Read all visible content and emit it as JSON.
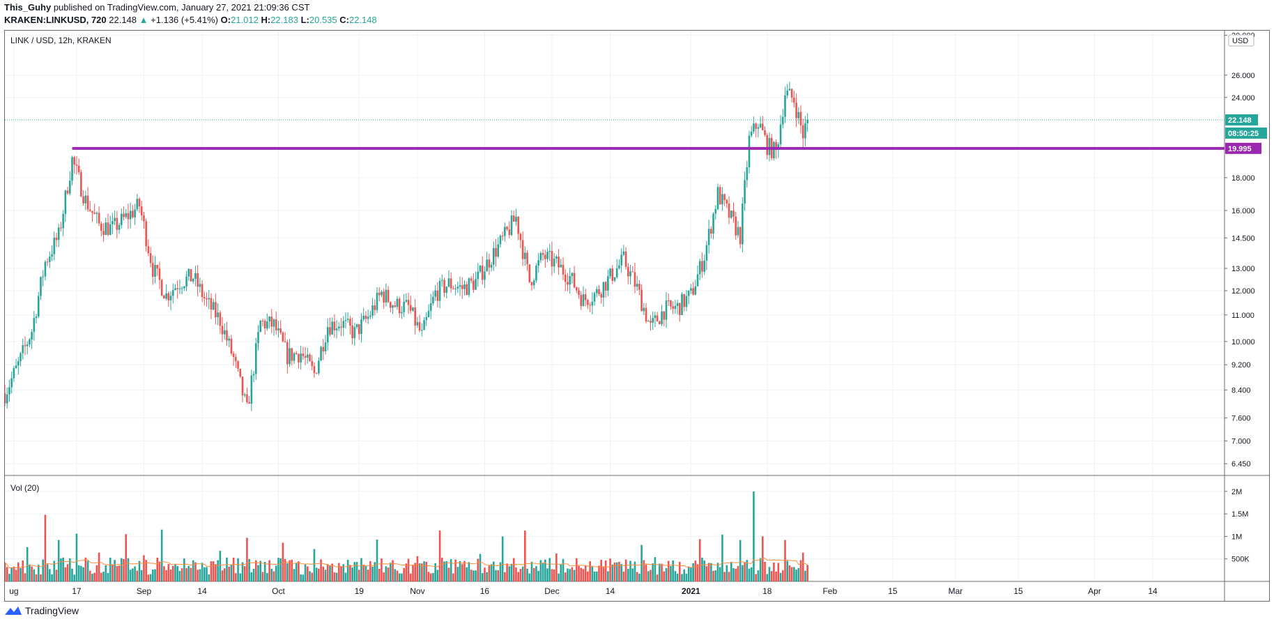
{
  "header": {
    "author": "This_Guhy",
    "published_text": "published on TradingView.com, January 27, 2021 21:09:36 CST",
    "symbol": "KRAKEN:LINKUSD, 720",
    "last": "22.148",
    "change_arrow": "▲",
    "change": "+1.136 (+5.41%)",
    "o_label": "O:",
    "o_value": "21.012",
    "h_label": "H:",
    "h_value": "22.183",
    "l_label": "L:",
    "l_value": "20.535",
    "c_label": "C:",
    "c_value": "22.148"
  },
  "footer": {
    "brand": "TradingView",
    "logo_icon": "tradingview-logo-icon"
  },
  "chart_data": {
    "type": "candlestick",
    "title": "LINK / USD, 12h, KRAKEN",
    "currency_badge": "USD",
    "y_scale": "log",
    "ylim": [
      6.2,
      30.5
    ],
    "y_ticks": [
      "30.000",
      "26.000",
      "24.000",
      "18.000",
      "16.000",
      "14.500",
      "13.000",
      "12.000",
      "11.000",
      "10.000",
      "9.200",
      "8.400",
      "7.600",
      "7.000",
      "6.450"
    ],
    "x_range": [
      "2020-08-01",
      "2021-04-30"
    ],
    "x_ticks": [
      {
        "date": "2020-08-03",
        "label": "ug"
      },
      {
        "date": "2020-08-17",
        "label": "17"
      },
      {
        "date": "2020-09-01",
        "label": "Sep"
      },
      {
        "date": "2020-09-14",
        "label": "14"
      },
      {
        "date": "2020-10-01",
        "label": "Oct"
      },
      {
        "date": "2020-10-19",
        "label": "19"
      },
      {
        "date": "2020-11-01",
        "label": "Nov"
      },
      {
        "date": "2020-11-16",
        "label": "16"
      },
      {
        "date": "2020-12-01",
        "label": "Dec"
      },
      {
        "date": "2020-12-14",
        "label": "14"
      },
      {
        "date": "2021-01-01",
        "label": "2021"
      },
      {
        "date": "2021-01-18",
        "label": "18"
      },
      {
        "date": "2021-02-01",
        "label": "Feb"
      },
      {
        "date": "2021-02-15",
        "label": "15"
      },
      {
        "date": "2021-03-01",
        "label": "Mar"
      },
      {
        "date": "2021-03-15",
        "label": "15"
      },
      {
        "date": "2021-04-01",
        "label": "Apr"
      },
      {
        "date": "2021-04-14",
        "label": "14"
      }
    ],
    "series_close": [
      [
        "2020-08-01",
        8.3
      ],
      [
        "2020-08-04",
        9.2
      ],
      [
        "2020-08-07",
        10.4
      ],
      [
        "2020-08-10",
        13.3
      ],
      [
        "2020-08-13",
        14.6
      ],
      [
        "2020-08-16",
        19.2
      ],
      [
        "2020-08-19",
        16.6
      ],
      [
        "2020-08-22",
        15.2
      ],
      [
        "2020-08-25",
        15.0
      ],
      [
        "2020-08-28",
        15.6
      ],
      [
        "2020-08-31",
        16.3
      ],
      [
        "2020-09-03",
        13.0
      ],
      [
        "2020-09-06",
        11.8
      ],
      [
        "2020-09-09",
        12.4
      ],
      [
        "2020-09-12",
        12.6
      ],
      [
        "2020-09-15",
        11.5
      ],
      [
        "2020-09-18",
        10.8
      ],
      [
        "2020-09-21",
        9.4
      ],
      [
        "2020-09-24",
        7.8
      ],
      [
        "2020-09-27",
        10.7
      ],
      [
        "2020-09-30",
        10.6
      ],
      [
        "2020-10-03",
        9.5
      ],
      [
        "2020-10-06",
        9.6
      ],
      [
        "2020-10-09",
        8.9
      ],
      [
        "2020-10-12",
        10.6
      ],
      [
        "2020-10-15",
        10.7
      ],
      [
        "2020-10-18",
        10.3
      ],
      [
        "2020-10-21",
        10.9
      ],
      [
        "2020-10-24",
        11.9
      ],
      [
        "2020-10-27",
        11.4
      ],
      [
        "2020-10-30",
        11.3
      ],
      [
        "2020-11-02",
        10.2
      ],
      [
        "2020-11-05",
        11.9
      ],
      [
        "2020-11-08",
        12.3
      ],
      [
        "2020-11-11",
        12.1
      ],
      [
        "2020-11-14",
        12.4
      ],
      [
        "2020-11-17",
        13.4
      ],
      [
        "2020-11-20",
        14.4
      ],
      [
        "2020-11-23",
        15.6
      ],
      [
        "2020-11-26",
        12.4
      ],
      [
        "2020-11-29",
        13.6
      ],
      [
        "2020-12-02",
        13.2
      ],
      [
        "2020-12-05",
        12.6
      ],
      [
        "2020-12-08",
        11.6
      ],
      [
        "2020-12-11",
        11.9
      ],
      [
        "2020-12-14",
        12.6
      ],
      [
        "2020-12-17",
        13.4
      ],
      [
        "2020-12-20",
        12.1
      ],
      [
        "2020-12-23",
        10.5
      ],
      [
        "2020-12-26",
        11.2
      ],
      [
        "2020-12-29",
        11.3
      ],
      [
        "2021-01-01",
        11.8
      ],
      [
        "2021-01-04",
        13.6
      ],
      [
        "2021-01-07",
        17.0
      ],
      [
        "2021-01-10",
        15.5
      ],
      [
        "2021-01-12",
        14.6
      ],
      [
        "2021-01-14",
        20.6
      ],
      [
        "2021-01-16",
        22.0
      ],
      [
        "2021-01-18",
        20.2
      ],
      [
        "2021-01-20",
        19.7
      ],
      [
        "2021-01-22",
        24.4
      ],
      [
        "2021-01-24",
        23.8
      ],
      [
        "2021-01-26",
        21.0
      ],
      [
        "2021-01-27",
        22.148
      ]
    ],
    "volume": {
      "label": "Vol (20)",
      "y_ticks": [
        "2M",
        "1.5M",
        "1M",
        "500K"
      ],
      "ylim": [
        0,
        2200000
      ],
      "series": [
        [
          "2020-08-01",
          420000
        ],
        [
          "2020-08-06",
          760000
        ],
        [
          "2020-08-10",
          1480000
        ],
        [
          "2020-08-13",
          920000
        ],
        [
          "2020-08-17",
          1060000
        ],
        [
          "2020-08-22",
          640000
        ],
        [
          "2020-08-28",
          1050000
        ],
        [
          "2020-09-01",
          580000
        ],
        [
          "2020-09-05",
          1150000
        ],
        [
          "2020-09-10",
          510000
        ],
        [
          "2020-09-18",
          680000
        ],
        [
          "2020-09-24",
          970000
        ],
        [
          "2020-10-02",
          860000
        ],
        [
          "2020-10-09",
          720000
        ],
        [
          "2020-10-18",
          430000
        ],
        [
          "2020-10-23",
          930000
        ],
        [
          "2020-11-01",
          560000
        ],
        [
          "2020-11-06",
          1130000
        ],
        [
          "2020-11-15",
          610000
        ],
        [
          "2020-11-20",
          1000000
        ],
        [
          "2020-11-25",
          1130000
        ],
        [
          "2020-12-02",
          620000
        ],
        [
          "2020-12-12",
          480000
        ],
        [
          "2020-12-21",
          810000
        ],
        [
          "2020-12-24",
          540000
        ],
        [
          "2021-01-03",
          940000
        ],
        [
          "2021-01-08",
          1040000
        ],
        [
          "2021-01-12",
          920000
        ],
        [
          "2021-01-15",
          2000000
        ],
        [
          "2021-01-17",
          1000000
        ],
        [
          "2021-01-22",
          920000
        ],
        [
          "2021-01-26",
          640000
        ]
      ]
    },
    "level_line": {
      "value": 19.995,
      "label": "19.995",
      "color": "#9c27b0",
      "start": "2020-08-16"
    },
    "last_price": {
      "value": 22.148,
      "label": "22.148",
      "countdown": "08:50:25",
      "color": "#26a69a"
    },
    "colors": {
      "up": "#26a69a",
      "down": "#ef5350",
      "ma": "#ff8c3a",
      "grid": "#eef2f6"
    }
  }
}
